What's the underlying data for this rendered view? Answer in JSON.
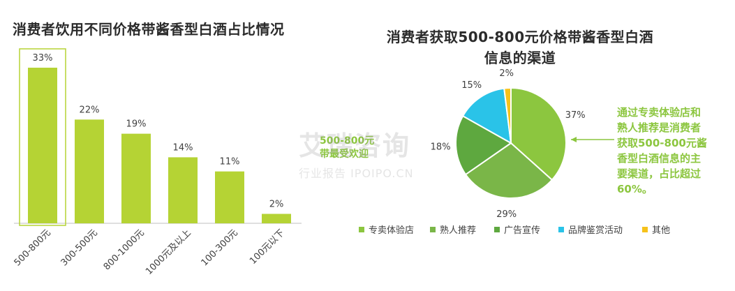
{
  "left_title": "消费者饮用不同价格带酱香型白酒占比情况",
  "right_title_line1": "消费者获取500-800元价格带酱香型白酒",
  "right_title_line2": "信息的渠道",
  "callout_lines": [
    "通过专卖体验店和",
    "熟人推荐是消费者",
    "获取500-800元酱",
    "香型白酒信息的主",
    "要渠道，占比超过",
    "60%。"
  ],
  "badge_lines": [
    "500-800元",
    "带最受欢迎"
  ],
  "watermark": {
    "main": "艾瑞咨询",
    "sub": "行业报告 IPOIPO.CN"
  },
  "chart_data": [
    {
      "type": "bar",
      "title": "消费者饮用不同价格带酱香型白酒占比情况",
      "categories": [
        "500-800元",
        "300-500元",
        "800-1000元",
        "1000元及以上",
        "100-300元",
        "100元以下"
      ],
      "values": [
        33,
        22,
        19,
        14,
        11,
        2
      ],
      "value_labels": [
        "33%",
        "22%",
        "19%",
        "14%",
        "11%",
        "2%"
      ],
      "ylim": [
        0,
        35
      ],
      "unit": "%",
      "highlight_category": "500-800元",
      "colors": {
        "bar": "#b5d334",
        "highlight_border": "#b5d334",
        "axis": "#bfbfbf",
        "label": "#404040"
      }
    },
    {
      "type": "pie",
      "title": "消费者获取500-800元价格带酱香型白酒信息的渠道",
      "slices": [
        {
          "label": "专卖体验店",
          "value": 37,
          "value_label": "37%",
          "color": "#8cc63f"
        },
        {
          "label": "熟人推荐",
          "value": 29,
          "value_label": "29%",
          "color": "#7ab648"
        },
        {
          "label": "广告宣传",
          "value": 18,
          "value_label": "18%",
          "color": "#5ea83f"
        },
        {
          "label": "品牌鉴赏活动",
          "value": 15,
          "value_label": "15%",
          "color": "#2ac3e8"
        },
        {
          "label": "其他",
          "value": 2,
          "value_label": "2%",
          "color": "#f6c21b"
        }
      ]
    }
  ]
}
